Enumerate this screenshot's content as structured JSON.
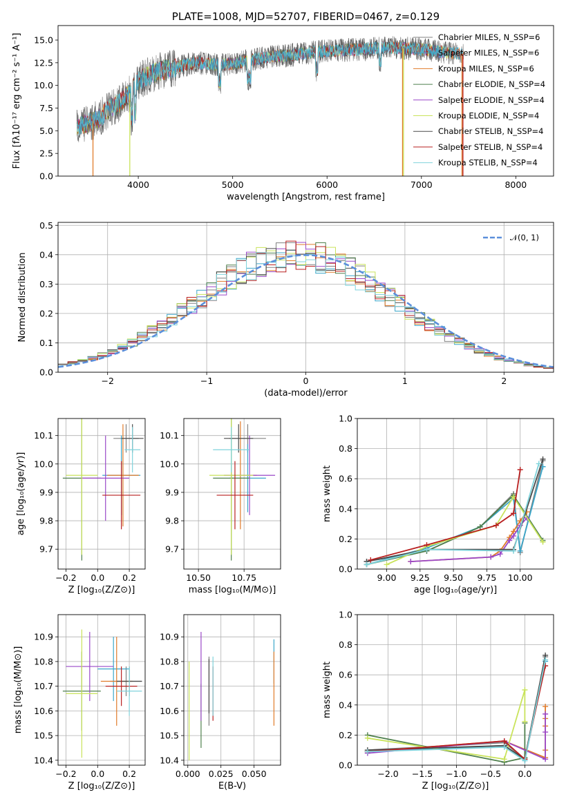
{
  "colors": [
    "#808080",
    "#3aa6c9",
    "#e07b2a",
    "#4e7f4c",
    "#9a47c8",
    "#c9e35b",
    "#4a4a4a",
    "#b81f1f",
    "#7fd3db"
  ],
  "chart_data": [
    {
      "id": "spectrum",
      "type": "line",
      "title": "PLATE=1008, MJD=52707, FIBERID=0467, z=0.129",
      "xlabel": "wavelength [Angstrom, rest frame]",
      "ylabel": "Flux [fλ10⁻¹⁷ erg cm⁻² s⁻¹ A⁻¹]",
      "xlim": [
        3150,
        8400
      ],
      "ylim": [
        0,
        16.6
      ],
      "xticks": [
        "4000",
        "5000",
        "6000",
        "7000",
        "8000"
      ],
      "yticks": [
        "0.0",
        "2.5",
        "5.0",
        "7.5",
        "10.0",
        "12.5",
        "15.0"
      ],
      "legend_position": "top-right",
      "series": [
        {
          "name": "Chabrier MILES, N_SSP=6"
        },
        {
          "name": "Salpeter MILES, N_SSP=6"
        },
        {
          "name": "Kroupa MILES, N_SSP=6"
        },
        {
          "name": "Chabrier ELODIE, N_SSP=4"
        },
        {
          "name": "Salpeter ELODIE, N_SSP=4"
        },
        {
          "name": "Kroupa ELODIE, N_SSP=4"
        },
        {
          "name": "Chabrier STELIB, N_SSP=4"
        },
        {
          "name": "Salpeter STELIB, N_SSP=4"
        },
        {
          "name": "Kroupa STELIB, N_SSP=4"
        }
      ],
      "continuum": {
        "x": [
          3350,
          3500,
          3600,
          3700,
          3800,
          3900,
          4000,
          4200,
          4400,
          4600,
          4800,
          5000,
          5200,
          5400,
          5600,
          5800,
          6000,
          6200,
          6400,
          6600,
          6800,
          7000,
          7200,
          7400
        ],
        "y": [
          5.5,
          6.0,
          6.5,
          7.5,
          8.0,
          9.0,
          10.5,
          11.5,
          12.0,
          12.5,
          12.3,
          12.4,
          12.8,
          13.2,
          13.3,
          13.6,
          13.8,
          13.9,
          14.0,
          14.2,
          14.1,
          14.0,
          13.7,
          13.5
        ]
      }
    },
    {
      "id": "residuals",
      "type": "step",
      "xlabel": "(data-model)/error",
      "ylabel": "Normed distribution",
      "xlim": [
        -2.5,
        2.5
      ],
      "ylim": [
        0,
        0.51
      ],
      "xticks": [
        "−2",
        "−1",
        "0",
        "1",
        "2"
      ],
      "yticks": [
        "0.0",
        "0.1",
        "0.2",
        "0.3",
        "0.4",
        "0.5"
      ],
      "legend": "𝒩(0, 1)",
      "legend_position": "top-right",
      "bins": {
        "start": -2.5,
        "width": 0.1,
        "count": 50
      }
    },
    {
      "id": "age-vs-z",
      "type": "errorbar",
      "xlabel": "Z [log₁₀(Z/Z⊙)]",
      "ylabel": "age  [log₁₀(age/yr)]",
      "xlim": [
        -0.25,
        0.3
      ],
      "ylim": [
        9.63,
        10.16
      ],
      "xticks": [
        "−0.2",
        "0.0",
        "0.2"
      ],
      "yticks": [
        "9.7",
        "9.8",
        "9.9",
        "10.0",
        "10.1"
      ],
      "points": [
        {
          "c": 0,
          "x": 0.18,
          "y": 10.09,
          "ex": 0.08,
          "ey": 0.05
        },
        {
          "c": 1,
          "x": 0.15,
          "y": 9.96,
          "ex": 0.12,
          "ey": 0.14
        },
        {
          "c": 2,
          "x": 0.16,
          "y": 9.96,
          "ex": 0.1,
          "ey": 0.18
        },
        {
          "c": 3,
          "x": -0.1,
          "y": 9.95,
          "ex": 0.12,
          "ey": 0.29
        },
        {
          "c": 4,
          "x": 0.05,
          "y": 9.95,
          "ex": 0.15,
          "ey": 0.15
        },
        {
          "c": 5,
          "x": -0.1,
          "y": 9.96,
          "ex": 0.1,
          "ey": 0.28
        },
        {
          "c": 6,
          "x": 0.22,
          "y": 10.09,
          "ex": 0.07,
          "ey": 0.05
        },
        {
          "c": 7,
          "x": 0.15,
          "y": 9.89,
          "ex": 0.12,
          "ey": 0.12
        },
        {
          "c": 8,
          "x": 0.22,
          "y": 10.05,
          "ex": 0.05,
          "ey": 0.08
        }
      ]
    },
    {
      "id": "age-vs-mass",
      "type": "errorbar",
      "xlabel": "mass [log₁₀(M/M⊙)]",
      "ylabel": "",
      "xlim": [
        10.42,
        10.95
      ],
      "ylim": [
        9.63,
        10.16
      ],
      "xticks": [
        "10.50",
        "10.75"
      ],
      "yticks": [
        "9.7",
        "9.8",
        "9.9",
        "10.0",
        "10.1"
      ],
      "points": [
        {
          "c": 0,
          "x": 10.77,
          "y": 10.09,
          "ex": 0.1,
          "ey": 0.05
        },
        {
          "c": 1,
          "x": 10.77,
          "y": 9.95,
          "ex": 0.1,
          "ey": 0.12
        },
        {
          "c": 2,
          "x": 10.73,
          "y": 9.96,
          "ex": 0.09,
          "ey": 0.19
        },
        {
          "c": 3,
          "x": 10.68,
          "y": 9.95,
          "ex": 0.1,
          "ey": 0.29
        },
        {
          "c": 4,
          "x": 10.78,
          "y": 9.96,
          "ex": 0.14,
          "ey": 0.14
        },
        {
          "c": 5,
          "x": 10.68,
          "y": 9.96,
          "ex": 0.12,
          "ey": 0.28
        },
        {
          "c": 6,
          "x": 10.72,
          "y": 10.09,
          "ex": 0.08,
          "ey": 0.05
        },
        {
          "c": 7,
          "x": 10.7,
          "y": 9.89,
          "ex": 0.1,
          "ey": 0.12
        },
        {
          "c": 8,
          "x": 10.68,
          "y": 10.05,
          "ex": 0.1,
          "ey": 0.08
        }
      ]
    },
    {
      "id": "weight-vs-age",
      "type": "line",
      "xlabel": "age  [log₁₀(age/yr)]",
      "ylabel": "mass weight",
      "xlim": [
        8.78,
        10.25
      ],
      "ylim": [
        0,
        1.0
      ],
      "xticks": [
        "9.00",
        "9.25",
        "9.50",
        "9.75",
        "10.00"
      ],
      "yticks": [
        "0.0",
        "0.2",
        "0.4",
        "0.6",
        "0.8",
        "1.0"
      ],
      "series": [
        {
          "c": 0,
          "x": [
            8.85,
            9.3,
            9.7,
            9.95,
            10.0,
            10.17
          ],
          "y": [
            0.05,
            0.12,
            0.28,
            0.5,
            0.11,
            0.72
          ]
        },
        {
          "c": 1,
          "x": [
            8.85,
            9.3,
            9.7,
            9.95,
            10.0,
            10.17
          ],
          "y": [
            0.03,
            0.14,
            0.28,
            0.47,
            0.12,
            0.68
          ]
        },
        {
          "c": 2,
          "x": [
            9.18,
            9.78,
            9.85,
            9.92,
            9.95,
            10.0,
            10.05
          ],
          "y": [
            0.05,
            0.08,
            0.12,
            0.21,
            0.25,
            0.32,
            0.38
          ]
        },
        {
          "c": 3,
          "x": [
            8.85,
            9.3,
            9.7,
            9.95,
            10.17
          ],
          "y": [
            0.03,
            0.12,
            0.28,
            0.49,
            0.19
          ]
        },
        {
          "c": 4,
          "x": [
            9.18,
            9.78,
            9.85,
            9.92,
            9.95,
            10.0,
            10.05
          ],
          "y": [
            0.05,
            0.08,
            0.1,
            0.19,
            0.22,
            0.29,
            0.34
          ]
        },
        {
          "c": 5,
          "x": [
            9.0,
            9.3,
            9.82,
            9.95,
            10.17
          ],
          "y": [
            0.03,
            0.15,
            0.29,
            0.48,
            0.18
          ]
        },
        {
          "c": 6,
          "x": [
            8.85,
            9.3,
            9.95,
            10.17
          ],
          "y": [
            0.05,
            0.13,
            0.13,
            0.73
          ]
        },
        {
          "c": 7,
          "x": [
            8.88,
            9.3,
            9.82,
            9.95,
            10.0
          ],
          "y": [
            0.06,
            0.16,
            0.29,
            0.37,
            0.66
          ]
        },
        {
          "c": 8,
          "x": [
            8.85,
            9.3,
            9.95,
            10.14
          ],
          "y": [
            0.03,
            0.13,
            0.12,
            0.7
          ]
        }
      ]
    },
    {
      "id": "mass-vs-z",
      "type": "errorbar",
      "xlabel": "Z [log₁₀(Z/Z⊙)]",
      "ylabel": "mass [log₁₀(M/M⊙)]",
      "xlim": [
        -0.25,
        0.3
      ],
      "ylim": [
        10.38,
        10.99
      ],
      "xticks": [
        "−0.2",
        "0.0",
        "0.2"
      ],
      "yticks": [
        "10.4",
        "10.5",
        "10.6",
        "10.7",
        "10.8",
        "10.9"
      ],
      "points": [
        {
          "c": 0,
          "x": 0.18,
          "y": 10.72,
          "ex": 0.1,
          "ey": 0.06
        },
        {
          "c": 1,
          "x": 0.1,
          "y": 10.77,
          "ex": 0.1,
          "ey": 0.13
        },
        {
          "c": 2,
          "x": 0.12,
          "y": 10.72,
          "ex": 0.1,
          "ey": 0.18
        },
        {
          "c": 3,
          "x": -0.1,
          "y": 10.68,
          "ex": 0.12,
          "ey": 0.16
        },
        {
          "c": 4,
          "x": -0.05,
          "y": 10.78,
          "ex": 0.15,
          "ey": 0.14
        },
        {
          "c": 5,
          "x": -0.1,
          "y": 10.67,
          "ex": 0.1,
          "ey": 0.26
        },
        {
          "c": 6,
          "x": 0.2,
          "y": 10.72,
          "ex": 0.08,
          "ey": 0.06
        },
        {
          "c": 7,
          "x": 0.15,
          "y": 10.7,
          "ex": 0.1,
          "ey": 0.08
        },
        {
          "c": 8,
          "x": 0.2,
          "y": 10.68,
          "ex": 0.08,
          "ey": 0.1
        }
      ]
    },
    {
      "id": "mass-vs-ebv",
      "type": "errorbar",
      "xlabel": "E(B-V)",
      "ylabel": "",
      "xlim": [
        -0.003,
        0.07
      ],
      "ylim": [
        10.38,
        10.99
      ],
      "xticks": [
        "0.000",
        "0.025",
        "0.050"
      ],
      "yticks": [
        "10.4",
        "10.5",
        "10.6",
        "10.7",
        "10.8",
        "10.9"
      ],
      "points": [
        {
          "c": 0,
          "x": 0.016,
          "y": 10.68,
          "ex": 0,
          "ey": 0.14
        },
        {
          "c": 1,
          "x": 0.065,
          "y": 10.8,
          "ex": 0,
          "ey": 0.09
        },
        {
          "c": 2,
          "x": 0.065,
          "y": 10.69,
          "ex": 0,
          "ey": 0.15
        },
        {
          "c": 3,
          "x": 0.01,
          "y": 10.58,
          "ex": 0,
          "ey": 0.13
        },
        {
          "c": 4,
          "x": 0.01,
          "y": 10.74,
          "ex": 0,
          "ey": 0.18
        },
        {
          "c": 5,
          "x": 0.001,
          "y": 10.6,
          "ex": 0,
          "ey": 0.2
        },
        {
          "c": 6,
          "x": 0.016,
          "y": 10.7,
          "ex": 0,
          "ey": 0.11
        },
        {
          "c": 7,
          "x": 0.019,
          "y": 10.67,
          "ex": 0,
          "ey": 0.11
        },
        {
          "c": 8,
          "x": 0.019,
          "y": 10.7,
          "ex": 0,
          "ey": 0.12
        }
      ]
    },
    {
      "id": "weight-vs-z",
      "type": "line",
      "xlabel": "Z [log₁₀(Z/Z⊙)]",
      "ylabel": "mass weight",
      "xlim": [
        -2.45,
        0.42
      ],
      "ylim": [
        0,
        1.0
      ],
      "xticks": [
        "−2.0",
        "−1.5",
        "−1.0",
        "−0.5",
        "0.0"
      ],
      "yticks": [
        "0.0",
        "0.2",
        "0.4",
        "0.6",
        "0.8",
        "1.0"
      ],
      "series": [
        {
          "c": 0,
          "x": [
            -2.3,
            -0.3,
            0.0,
            0.3
          ],
          "y": [
            0.1,
            0.15,
            0.04,
            0.72
          ]
        },
        {
          "c": 1,
          "x": [
            -2.3,
            -0.3,
            0.0,
            0.3
          ],
          "y": [
            0.09,
            0.13,
            0.03,
            0.69
          ]
        },
        {
          "c": 2,
          "x": [
            -2.3,
            -0.3,
            0.3,
            0.3,
            0.3,
            0.3,
            0.3
          ],
          "y": [
            0.09,
            0.16,
            0.05,
            0.1,
            0.26,
            0.31,
            0.39
          ]
        },
        {
          "c": 3,
          "x": [
            -2.3,
            -0.3,
            0.0,
            0.0
          ],
          "y": [
            0.2,
            0.02,
            0.05,
            0.28
          ]
        },
        {
          "c": 4,
          "x": [
            -2.3,
            -0.3,
            0.3,
            0.3,
            0.3
          ],
          "y": [
            0.08,
            0.16,
            0.04,
            0.22,
            0.34
          ]
        },
        {
          "c": 5,
          "x": [
            -2.3,
            -0.3,
            0.0,
            0.0
          ],
          "y": [
            0.18,
            0.04,
            0.5,
            0.29
          ]
        },
        {
          "c": 6,
          "x": [
            -2.3,
            -0.3,
            0.0,
            0.3
          ],
          "y": [
            0.1,
            0.13,
            0.04,
            0.73
          ]
        },
        {
          "c": 7,
          "x": [
            -2.3,
            -0.3,
            0.0,
            0.3
          ],
          "y": [
            0.09,
            0.16,
            0.04,
            0.66
          ]
        },
        {
          "c": 8,
          "x": [
            -2.3,
            -0.3,
            0.0,
            0.3
          ],
          "y": [
            0.09,
            0.12,
            0.03,
            0.7
          ]
        }
      ]
    }
  ]
}
